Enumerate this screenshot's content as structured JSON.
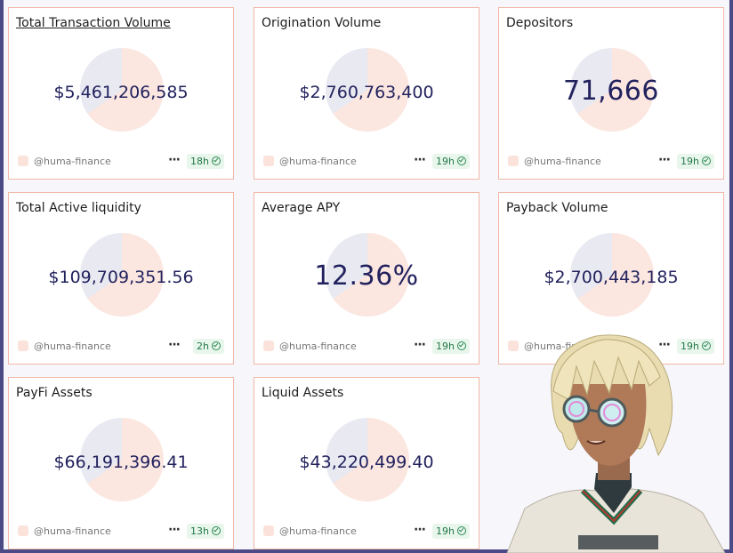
{
  "cards": [
    {
      "title": "Total Transaction Volume",
      "value": "$5,461,206,585",
      "author": "@huma-finance",
      "age": "18h"
    },
    {
      "title": "Origination Volume",
      "value": "$2,760,763,400",
      "author": "@huma-finance",
      "age": "19h"
    },
    {
      "title": "Depositors",
      "value": "71,666",
      "author": "@huma-finance",
      "age": "19h"
    },
    {
      "title": "Total Active liquidity",
      "value": "$109,709,351.56",
      "author": "@huma-finance",
      "age": "2h"
    },
    {
      "title": "Average APY",
      "value": "12.36%",
      "author": "@huma-finance",
      "age": "19h"
    },
    {
      "title": "Payback Volume",
      "value": "$2,700,443,185",
      "author": "@huma-finance",
      "age": "19h"
    },
    {
      "title": "PayFi Assets",
      "value": "$66,191,396.41",
      "author": "@huma-finance",
      "age": "13h"
    },
    {
      "title": "Liquid Assets",
      "value": "$43,220,499.40",
      "author": "@huma-finance",
      "age": "19h"
    }
  ],
  "more_icon": "ellipsis-icon",
  "verified_icon": "check-circle-icon",
  "colors": {
    "border": "#f1b8a6",
    "value": "#22225e",
    "badge_bg": "#e8f6ec",
    "badge_text": "#23784a",
    "frame": "#4c4a86"
  }
}
